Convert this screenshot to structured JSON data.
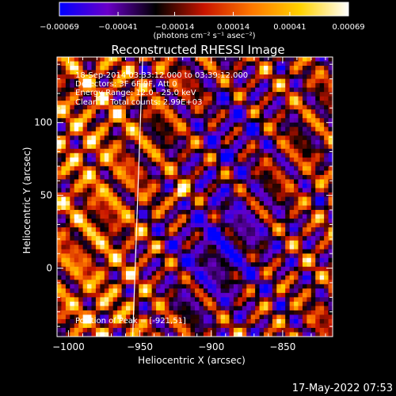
{
  "chart_data": {
    "type": "heatmap",
    "title": "Reconstructed RHESSI Image",
    "xlabel": "Heliocentric X (arcsec)",
    "ylabel": "Heliocentric Y (arcsec)",
    "xlim": [
      -1008,
      -815
    ],
    "ylim": [
      -47,
      145
    ],
    "x_ticks": [
      -1000,
      -950,
      -900,
      -850
    ],
    "x_tick_labels": [
      "−1000",
      "−950",
      "−900",
      "−850"
    ],
    "y_ticks": [
      0,
      50,
      100
    ],
    "y_tick_labels": [
      "0",
      "50",
      "100"
    ],
    "colorbar": {
      "min": -0.00069,
      "max": 0.00069,
      "ticks": [
        -0.00069,
        -0.00041,
        -0.00014,
        0.00014,
        0.00041,
        0.00069
      ],
      "tick_labels": [
        "−0.00069",
        "−0.00041",
        "−0.00014",
        "0.00014",
        "0.00041",
        "0.00069"
      ],
      "units_label": "(photons cm⁻² s⁻¹ asec⁻²)",
      "colormap": [
        "#0000ff",
        "#6a00c8",
        "#000000",
        "#c81400",
        "#ff7800",
        "#ffd200",
        "#ffffff"
      ]
    },
    "annotations": [
      "18-Sep-2014 03:33:12.000 to 03:39:12.000",
      "Detectors: 3F 6F 9F, Att 0",
      "Energy Range: 12.0 - 25.0 keV",
      "Clean     Total counts: 2.99E+03"
    ],
    "peak_label": "Position of Peak = [-921,51]",
    "peak_position": [
      -921,
      51
    ],
    "limb_line": true,
    "image_grid": {
      "nx": 64,
      "ny": 64
    }
  },
  "footer": {
    "timestamp": "17-May-2022 07:53"
  }
}
